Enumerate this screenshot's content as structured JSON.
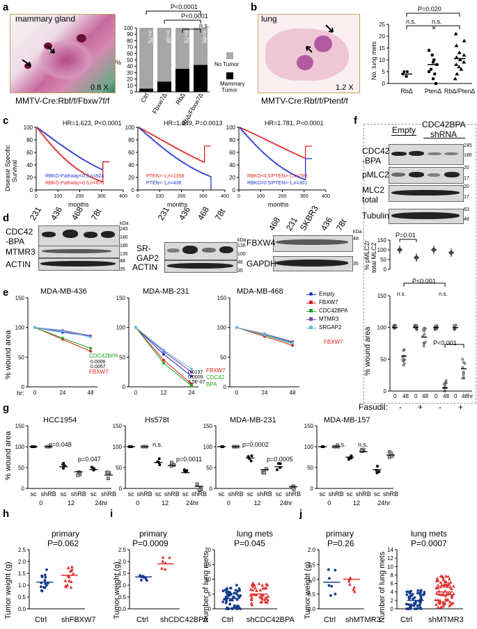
{
  "panels": {
    "a": "a",
    "b": "b",
    "c": "c",
    "d": "d",
    "e": "e",
    "f": "f",
    "g": "g",
    "h": "h",
    "i": "i",
    "j": "j"
  },
  "panel_a": {
    "image_label": "mammary gland",
    "magnification": "0.8 X",
    "caption": "MMTV-Cre:Rbf/f/Fbxw7f/f",
    "pvals": [
      "P<0.0001",
      "P<0.0001",
      "n.s."
    ],
    "legend": [
      "No Tumor",
      "Mammary",
      "Tumor"
    ],
    "ylabel": "%"
  },
  "panel_b": {
    "image_label": "lung",
    "magnification": "1.2 X",
    "caption": "MMTV-Cre:Rbf/f/Ptenf/f",
    "pvals": [
      "P=0.020",
      "n.s.",
      "n.s."
    ],
    "ylabel": "No. lung mets"
  },
  "panel_c": {
    "ylabel": [
      "Disease Specific",
      "Survival"
    ],
    "xlabel": "months",
    "titles": [
      "HR=1.623, P<0.0001",
      "HR=1.349, P=0.0013",
      "HR=1.781, P<0.0001"
    ],
    "legend1": [
      "RBKO-Pathway<0.5,n=924",
      "RBKO-Pathway>0.5,n=870"
    ],
    "legend2": [
      "PTEN>-1,n=1358",
      "PTEN<-1,n=436"
    ],
    "legend3": [
      "RBKO<0.5/PTEN>-1,n=789",
      "RBKO>0.5/PTEN<-1,n=301"
    ]
  },
  "panel_d": {
    "lanes1": [
      "231",
      "436",
      "468",
      "78t"
    ],
    "lanes3": [
      "468",
      "231",
      "SKBR3",
      "436",
      "78t"
    ],
    "labels1": [
      "CDC42",
      "-BPA",
      "MTMR3",
      "ACTIN"
    ],
    "labels2": [
      "SR-",
      "GAP2",
      "ACTIN"
    ],
    "labels3": [
      "FBXW4",
      "GAPDH"
    ],
    "kda": "kDa",
    "mw1": [
      "245",
      "180",
      "180",
      "135",
      "48",
      "35"
    ],
    "mw2": [
      "135",
      "100",
      "48",
      "35"
    ],
    "mw3": [
      "48",
      "35"
    ]
  },
  "panel_e": {
    "titles": [
      "MDA-MB-436",
      "MDA-MB-231",
      "MDA-MB-468"
    ],
    "ylabel": "% wound area",
    "hr": "hr:",
    "legend": [
      "Empty",
      "FBXW7",
      "CDC42BPA",
      "MTMR3",
      "SRGAP2"
    ],
    "ann1": [
      "CDC42BPA",
      "0.0006",
      "0.0057",
      "FBXW7"
    ],
    "ann2": [
      "0.0197",
      "0.0009",
      "3.5E-07",
      "FBXW7",
      "CDC42",
      "BPA"
    ],
    "ann3": "FBXW7"
  },
  "panel_f": {
    "header": [
      "Empty",
      "CDC42BPA",
      "shRNA"
    ],
    "labels": [
      "CDC42",
      "-BPA",
      "pMLC2",
      "MLC2",
      "total",
      "Tubulin"
    ],
    "mw": [
      "245",
      "180",
      "20",
      "17",
      "20",
      "17",
      "63",
      "48"
    ],
    "ratio_ylabel": [
      "% pMLC2/",
      "total MLC2"
    ],
    "ratio_p": "P=0.01",
    "wound_ylabel": "% wound area",
    "wound_p": [
      "P<0.001",
      "n.s.",
      "n.s.",
      "P<0.001"
    ],
    "fasudil": "Fasudil:",
    "fasudil_marks": [
      "-",
      "+",
      "-",
      "+"
    ],
    "xt": [
      "0",
      "48",
      "0",
      "48",
      "0",
      "48",
      "0",
      "48hr"
    ]
  },
  "panel_g": {
    "titles": [
      "HCC1954",
      "Hs578t",
      "MDA-MB-231",
      "MDA-MB-157"
    ],
    "ylabel": "% wound area",
    "pvals": [
      [
        "p=0.048",
        "p=0.047"
      ],
      [
        "n.s.",
        "p=0.0011"
      ],
      [
        "p=0.0002",
        "p=0.0005"
      ],
      [
        "n.s.",
        "n.s."
      ]
    ],
    "xgroups": [
      "sc shRB",
      "sc shRB",
      "sc shRB"
    ],
    "times": [
      "0",
      "12",
      "24hr"
    ]
  },
  "panel_h": {
    "title": "primary",
    "p": "P=0.062",
    "ylabel": "Tumor weight (g)",
    "x": [
      "Ctrl",
      "shFBXW7"
    ]
  },
  "panel_i": {
    "title1": "primary",
    "p1": "P=0.0009",
    "ylabel1": "Tumor weight (g)",
    "x1": [
      "Ctrl",
      "shCDC42BPA"
    ],
    "title2": "lung mets",
    "p2": "P=0.045",
    "ylabel2": "Number of lung mets",
    "x2": [
      "Ctrl",
      "shCDC42BPA"
    ]
  },
  "panel_j": {
    "title1": "primary",
    "p1": "P=0.26",
    "ylabel1": "Tumor weight (g)",
    "x1": [
      "Ctrl",
      "shMTMR3"
    ],
    "title2": "lung mets",
    "p2": "P=0.0007",
    "ylabel2": "Number of lung mets",
    "x2": [
      "Ctrl",
      "shMTMR3"
    ]
  },
  "chart_data": [
    {
      "id": "a-bar",
      "type": "bar",
      "categories": [
        "Ctrl",
        "Fbxw7Δ",
        "RbΔ",
        "RbΔ/Fbxw7Δ"
      ],
      "n": [
        "n=75",
        "n=38",
        "n=78",
        "n=86"
      ],
      "series": [
        {
          "name": "Mammary Tumor",
          "values": [
            5,
            16,
            36,
            42
          ]
        },
        {
          "name": "No Tumor",
          "values": [
            95,
            84,
            64,
            58
          ]
        }
      ],
      "ylim": [
        0,
        100
      ],
      "yticks": [
        "0",
        "10",
        "20",
        "30",
        "40",
        "50",
        "60",
        "70",
        "80",
        "90",
        "100"
      ],
      "ylabel": "%"
    },
    {
      "id": "b-dot",
      "type": "scatter",
      "categories": [
        "RbΔ",
        "PtenΔ",
        "RbΔ/PtenΔ"
      ],
      "ylim": [
        0,
        25
      ],
      "yticks": [
        "0",
        "5",
        "10",
        "15",
        "20",
        "25"
      ],
      "points": [
        [
          3,
          5,
          4,
          5,
          3
        ],
        [
          2,
          5,
          8,
          10,
          12,
          6,
          0,
          4,
          14,
          9
        ],
        [
          4,
          6,
          8,
          10,
          13,
          16,
          2,
          9,
          18,
          21,
          7,
          12,
          11
        ]
      ],
      "means": [
        4,
        8,
        10.5
      ]
    },
    {
      "id": "c1",
      "type": "line",
      "xlabel": "months",
      "yticks": [
        "0",
        "20",
        "40",
        "60",
        "80",
        "100"
      ],
      "xticks": [
        "0",
        "100",
        "200",
        "300",
        "400"
      ]
    },
    {
      "id": "c2",
      "type": "line",
      "xlabel": "months",
      "yticks": [
        "0",
        "20",
        "40",
        "60",
        "80",
        "100"
      ],
      "xticks": [
        "0",
        "100",
        "200",
        "300",
        "400"
      ]
    },
    {
      "id": "c3",
      "type": "line",
      "xlabel": "months",
      "yticks": [
        "0",
        "20",
        "40",
        "60",
        "80",
        "100"
      ],
      "xticks": [
        "0",
        "100",
        "200",
        "300",
        "400"
      ]
    },
    {
      "id": "e1",
      "type": "line",
      "x": [
        0,
        24,
        48
      ],
      "xticks": [
        "0",
        "24",
        "48"
      ],
      "yticks": [
        "0",
        "50",
        "100",
        "150"
      ],
      "series": [
        {
          "name": "Empty",
          "values": [
            100,
            92,
            85
          ]
        },
        {
          "name": "FBXW7",
          "values": [
            100,
            80,
            60
          ]
        },
        {
          "name": "CDC42BPA",
          "values": [
            100,
            82,
            65
          ]
        },
        {
          "name": "MTMR3",
          "values": [
            100,
            95,
            86
          ]
        },
        {
          "name": "SRGAP2",
          "values": [
            100,
            94,
            84
          ]
        }
      ]
    },
    {
      "id": "e2",
      "type": "line",
      "x": [
        0,
        12,
        24
      ],
      "xticks": [
        "0",
        "12",
        "24"
      ],
      "yticks": [
        "0",
        "50",
        "100",
        "150"
      ],
      "series": [
        {
          "name": "Empty",
          "values": [
            100,
            55,
            18
          ]
        },
        {
          "name": "FBXW7",
          "values": [
            100,
            45,
            5
          ]
        },
        {
          "name": "CDC42BPA",
          "values": [
            100,
            40,
            2
          ]
        },
        {
          "name": "MTMR3",
          "values": [
            100,
            60,
            25
          ]
        },
        {
          "name": "SRGAP2",
          "values": [
            100,
            62,
            30
          ]
        }
      ]
    },
    {
      "id": "e3",
      "type": "line",
      "x": [
        0,
        24,
        48
      ],
      "xticks": [
        "0",
        "24",
        "48"
      ],
      "yticks": [
        "0",
        "50",
        "100",
        "150"
      ],
      "series": [
        {
          "name": "Empty",
          "values": [
            100,
            88,
            75
          ]
        },
        {
          "name": "FBXW7",
          "values": [
            100,
            85,
            70
          ]
        },
        {
          "name": "CDC42BPA",
          "values": [
            100,
            87,
            73
          ]
        },
        {
          "name": "MTMR3",
          "values": [
            100,
            89,
            76
          ]
        },
        {
          "name": "SRGAP2",
          "values": [
            100,
            88,
            74
          ]
        }
      ]
    },
    {
      "id": "f-ratio",
      "type": "scatter",
      "yticks": [
        "0",
        "50",
        "100",
        "150"
      ],
      "means": [
        100,
        60,
        100,
        85
      ]
    },
    {
      "id": "f-wound",
      "type": "scatter",
      "yticks": [
        "0",
        "50",
        "100",
        "150"
      ],
      "means": [
        100,
        55,
        100,
        85,
        100,
        5,
        100,
        35
      ]
    },
    {
      "id": "g",
      "type": "scatter",
      "yticks": [
        "0",
        "50",
        "100",
        "150"
      ],
      "groups": [
        [
          100,
          100,
          52,
          40,
          45,
          32
        ],
        [
          100,
          100,
          62,
          55,
          38,
          5
        ],
        [
          100,
          100,
          73,
          45,
          52,
          4
        ],
        [
          100,
          100,
          75,
          88,
          45,
          80
        ]
      ]
    },
    {
      "id": "h",
      "type": "scatter",
      "categories": [
        "Ctrl",
        "shFBXW7"
      ],
      "ylim": [
        0,
        2.5
      ],
      "yticks": [
        "0.0",
        "0.5",
        "1.0",
        "1.5",
        "2.0",
        "2.5"
      ],
      "means": [
        1.13,
        1.42
      ]
    },
    {
      "id": "i1",
      "type": "scatter",
      "categories": [
        "Ctrl",
        "shCDC42BPA"
      ],
      "ylim": [
        0,
        2.5
      ],
      "yticks": [
        "0.0",
        "0.5",
        "1.0",
        "1.5",
        "2.0",
        "2.5"
      ],
      "means": [
        1.35,
        1.9
      ]
    },
    {
      "id": "i2",
      "type": "scatter",
      "categories": [
        "Ctrl",
        "shCDC42BPA"
      ],
      "ylim": [
        0,
        20
      ],
      "yticks": [
        "0",
        "5",
        "10",
        "15",
        "20"
      ],
      "means": [
        3.5,
        5
      ]
    },
    {
      "id": "j1",
      "type": "scatter",
      "categories": [
        "Ctrl",
        "shMTMR3"
      ],
      "ylim": [
        0,
        2
      ],
      "yticks": [
        "0.0",
        "0.5",
        "1.0",
        "1.5",
        "2.0"
      ],
      "means": [
        0.9,
        1.0
      ]
    },
    {
      "id": "j2",
      "type": "scatter",
      "categories": [
        "Ctrl",
        "shMTMR3"
      ],
      "ylim": [
        0,
        14
      ],
      "yticks": [
        "0",
        "2",
        "4",
        "6",
        "8",
        "10",
        "12",
        "14"
      ],
      "means": [
        2,
        4
      ]
    }
  ]
}
